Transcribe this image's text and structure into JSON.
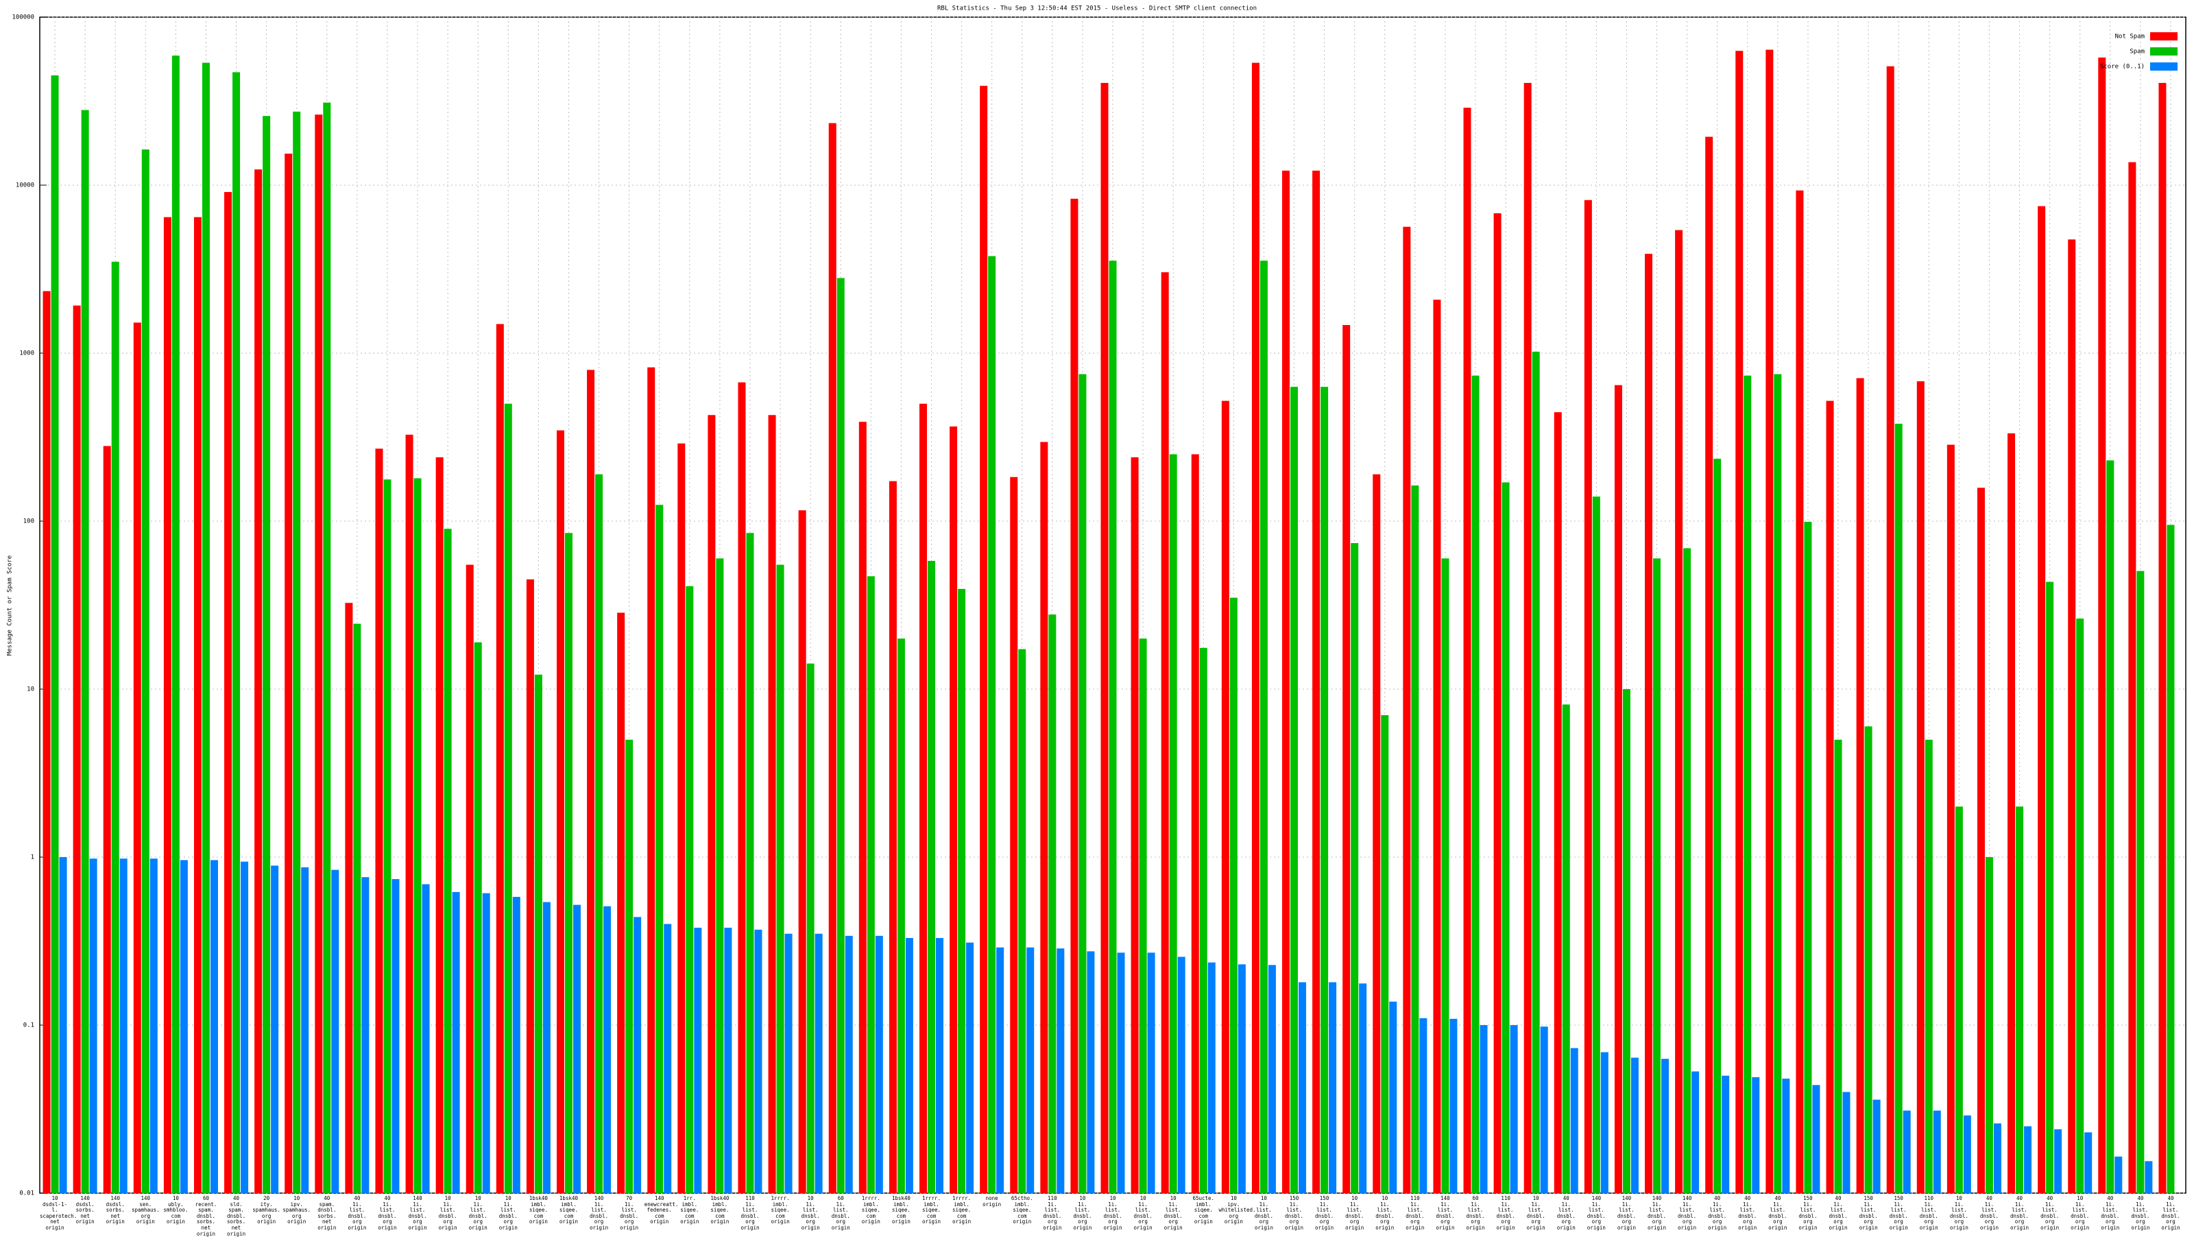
{
  "chart_data": {
    "type": "bar",
    "log_scale": true,
    "grid": true,
    "legend": "upper right",
    "title": "RBL Statistics - Thu Sep  3 12:50:44 EST 2015 - Useless - Direct SMTP client connection",
    "y_label": "Message Count or Spam Score",
    "ylim": [
      0.01,
      100000
    ],
    "yticks": [
      0.01,
      0.1,
      1,
      10,
      100,
      1000,
      10000,
      100000
    ],
    "categories": [
      "10\ndsdsl-1-l.\nscaperotech.\nnet\norigin",
      "140\ndsdsl.\nsorbs.\nnet\norigin",
      "140\ndsdsl.\nsorbs.\nnet\norigin",
      "140\nsen.\nspamhaus.\norg\norigin",
      "10\nubly.\nsmhbloo.\ncom\norigin",
      "60\nrecent.\nspam.\ndnsbl.\nsorbs.\nnet\norigin",
      "40\nsld.\nspam.\ndnsbl.\nsorbs.\nnet\norigin",
      "20\nity.\nspamhaus.\norg\norigin",
      "10\nipv.\nspamhaus.\norg\norigin",
      "40\nspam.\ndnsbl.\nsorbs.\nnet\norigin",
      "40\n1i.\nlist.\ndnsbl.\norg\norigin",
      "40\n1i.\nlist.\ndnsbl.\norg\norigin",
      "140\n1i.\nlist.\ndnsbl.\norg\norigin",
      "10\n1i.\nlist.\ndnsbl.\norg\norigin",
      "10\n1i.\nlist.\ndnsbl.\norg\norigin",
      "10\n1i.\nlist.\ndnsbl.\norg\norigin",
      "1bsk40\nimbl.\nsiqee.\ncom\norigin",
      "1bsk40\nimbl.\nsiqee.\ncom\norigin",
      "140\n1i.\nlist.\ndnsbl.\norg\norigin",
      "70\n1i.\nlist.\ndnsbl.\norg\norigin",
      "140\nenewcreatt.\nfedenes.\ncom\norigin",
      "1rr.\nimbl.\nsiqee.\ncom\norigin",
      "1bsk40\nimbl.\nsiqee.\ncom\norigin",
      "110\n1i.\nlist.\ndnsbl.\norg\norigin",
      "1rrrr.\nimbl.\nsiqee.\ncom\norigin",
      "10\n1i.\nlist.\ndnsbl.\norg\norigin",
      "60\n1i.\nlist.\ndnsbl.\norg\norigin",
      "1rrrr.\nimbl.\nsiqee.\ncom\norigin",
      "1bsk40\nimbl.\nsiqee.\ncom\norigin",
      "1rrrr.\nimbl.\nsiqee.\ncom\norigin",
      "1rrrr.\nimbl.\nsiqee.\ncom\norigin",
      "none\norigin",
      "65ctho.\nimbl.\nsiqee.\ncom\norigin",
      "110\n1i.\nlist.\ndnsbl.\norg\norigin",
      "10\n1i.\nlist.\ndnsbl.\norg\norigin",
      "10\n1i.\nlist.\ndnsbl.\norg\norigin",
      "10\n1i.\nlist.\ndnsbl.\norg\norigin",
      "10\n1i.\nlist.\ndnsbl.\norg\norigin",
      "65ucte.\nimbl.\nsiqee.\ncom\norigin",
      "10\nipv.\nwhitelisted.\norg\norigin",
      "10\n1i.\nlist.\ndnsbl.\norg\norigin",
      "150\n1i.\nlist.\ndnsbl.\norg\norigin",
      "150\n1i.\nlist.\ndnsbl.\norg\norigin",
      "10\n1i.\nlist.\ndnsbl.\norg\norigin",
      "10\n1i.\nlist.\ndnsbl.\norg\norigin",
      "110\n1i.\nlist.\ndnsbl.\norg\norigin",
      "140\n1i.\nlist.\ndnsbl.\norg\norigin",
      "60\n1i.\nlist.\ndnsbl.\norg\norigin",
      "110\n1i.\nlist.\ndnsbl.\norg\norigin",
      "10\n1i.\nlist.\ndnsbl.\norg\norigin",
      "40\n1i.\nlist.\ndnsbl.\norg\norigin",
      "140\n1i.\nlist.\ndnsbl.\norg\norigin",
      "140\n1i.\nlist.\ndnsbl.\norg\norigin",
      "140\n1i.\nlist.\ndnsbl.\norg\norigin",
      "140\n1i.\nlist.\ndnsbl.\norg\norigin",
      "40\n1i.\nlist.\ndnsbl.\norg\norigin",
      "40\n1i.\nlist.\ndnsbl.\norg\norigin",
      "40\n1i.\nlist.\ndnsbl.\norg\norigin",
      "150\n1i.\nlist.\ndnsbl.\norg\norigin",
      "40\n1i.\nlist.\ndnsbl.\norg\norigin",
      "150\n1i.\nlist.\ndnsbl.\norg\norigin",
      "150\n1i.\nlist.\ndnsbl.\norg\norigin",
      "110\n1i.\nlist.\ndnsbl.\norg\norigin",
      "10\n1i.\nlist.\ndnsbl.\norg\norigin",
      "40\n1i.\nlist.\ndnsbl.\norg\norigin",
      "40\n1i.\nlist.\ndnsbl.\norg\norigin",
      "40\n1i.\nlist.\ndnsbl.\norg\norigin",
      "10\n1i.\nlist.\ndnsbl.\norg\norigin",
      "40\n1i.\nlist.\ndnsbl.\norg\norigin",
      "40\n1i.\nlist.\ndnsbl.\norg\norigin",
      "40\n1i.\nlist.\ndnsbl.\norg\norigin"
    ],
    "series": [
      {
        "name": "Not Spam",
        "color": "#ff0000",
        "values": [
          2340,
          1920,
          280,
          1520,
          6450,
          6450,
          9100,
          12400,
          15400,
          26300,
          32.6,
          270,
          327,
          240,
          55,
          1490,
          45,
          347,
          795,
          28.5,
          823,
          290,
          428,
          670,
          428,
          116,
          23400,
          390,
          173,
          500,
          366,
          39000,
          183,
          296,
          8300,
          40600,
          240,
          3030,
          250,
          520,
          53500,
          12200,
          12200,
          1470,
          190,
          5650,
          2080,
          28900,
          6800,
          40600,
          445,
          8150,
          645,
          3900,
          5400,
          19400,
          63000,
          64000,
          9300,
          520,
          710,
          51000,
          680,
          285,
          158,
          333,
          7500,
          4750,
          57500,
          13700,
          40600
        ]
      },
      {
        "name": "Spam",
        "color": "#00c000",
        "values": [
          45000,
          28000,
          3500,
          16300,
          59000,
          53500,
          47000,
          25800,
          27400,
          31000,
          24.5,
          177,
          180,
          90,
          19,
          500,
          12.2,
          85,
          190,
          5.0,
          125,
          41,
          60,
          85,
          55,
          14.2,
          2800,
          47,
          20,
          58,
          39.5,
          3780,
          17.3,
          27.8,
          750,
          3550,
          20,
          250,
          17.6,
          35,
          3550,
          630,
          630,
          74,
          7.0,
          163,
          60,
          735,
          170,
          1020,
          8.1,
          140,
          10,
          60,
          69,
          235,
          735,
          750,
          99,
          5.0,
          6.0,
          380,
          5.0,
          2.0,
          1.0,
          2.0,
          43.5,
          26.3,
          230,
          50.5,
          95
        ]
      },
      {
        "name": "Score (0..1)",
        "color": "#0080ff",
        "values": [
          1.0,
          0.98,
          0.98,
          0.98,
          0.96,
          0.96,
          0.94,
          0.89,
          0.87,
          0.84,
          0.76,
          0.74,
          0.69,
          0.62,
          0.61,
          0.58,
          0.54,
          0.52,
          0.51,
          0.44,
          0.4,
          0.38,
          0.38,
          0.37,
          0.35,
          0.35,
          0.34,
          0.34,
          0.33,
          0.33,
          0.31,
          0.29,
          0.29,
          0.286,
          0.275,
          0.27,
          0.27,
          0.255,
          0.236,
          0.23,
          0.228,
          0.18,
          0.18,
          0.177,
          0.138,
          0.11,
          0.109,
          0.1,
          0.1,
          0.098,
          0.073,
          0.069,
          0.064,
          0.063,
          0.053,
          0.05,
          0.049,
          0.048,
          0.044,
          0.04,
          0.036,
          0.031,
          0.031,
          0.029,
          0.026,
          0.025,
          0.024,
          0.023,
          0.0165,
          0.0155,
          null
        ]
      }
    ]
  }
}
